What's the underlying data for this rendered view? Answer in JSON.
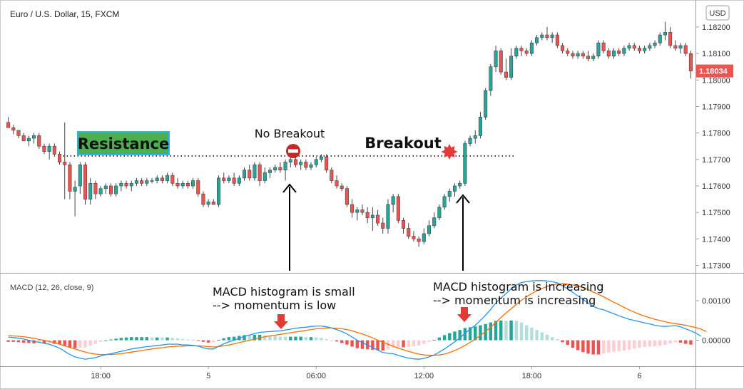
{
  "chart_data": {
    "type": "candlestick",
    "title": "Euro / U.S. Dollar, 15, FXCM",
    "currency_label": "USD",
    "price_axis": {
      "ylim": [
        1.1728,
        1.18275
      ],
      "ticks": [
        "1.18200",
        "1.18100",
        "1.18000",
        "1.17900",
        "1.17800",
        "1.17700",
        "1.17600",
        "1.17500",
        "1.17400",
        "1.17300"
      ],
      "tick_values": [
        1.182,
        1.181,
        1.18,
        1.179,
        1.178,
        1.177,
        1.176,
        1.175,
        1.174,
        1.173
      ],
      "last_price_label": "1.18034",
      "last_price": 1.18034
    },
    "time_axis": {
      "labels": [
        "18:00",
        "5",
        "06:00",
        "12:00",
        "18:00",
        "6"
      ],
      "label_bar_index": [
        18,
        39,
        60,
        81,
        102,
        123
      ]
    },
    "resistance_level": 1.17713,
    "candles": [
      [
        1.1784,
        1.1786,
        1.1782,
        1.1782
      ],
      [
        1.1782,
        1.1783,
        1.17795,
        1.1781
      ],
      [
        1.1781,
        1.1781,
        1.1778,
        1.1779
      ],
      [
        1.1779,
        1.178,
        1.1777,
        1.1777
      ],
      [
        1.1777,
        1.1779,
        1.1775,
        1.1778
      ],
      [
        1.1778,
        1.178,
        1.1776,
        1.1779
      ],
      [
        1.1779,
        1.178,
        1.1774,
        1.1775
      ],
      [
        1.1775,
        1.1776,
        1.1772,
        1.1773
      ],
      [
        1.1773,
        1.1776,
        1.177,
        1.1775
      ],
      [
        1.1775,
        1.1776,
        1.1771,
        1.1772
      ],
      [
        1.1772,
        1.1773,
        1.1768,
        1.1769
      ],
      [
        1.1769,
        1.1784,
        1.1755,
        1.1768
      ],
      [
        1.1768,
        1.1769,
        1.1755,
        1.1758
      ],
      [
        1.1758,
        1.1762,
        1.17485,
        1.17595
      ],
      [
        1.176,
        1.1769,
        1.1757,
        1.1768
      ],
      [
        1.1768,
        1.1769,
        1.1753,
        1.1755
      ],
      [
        1.1755,
        1.1763,
        1.1753,
        1.1761
      ],
      [
        1.1761,
        1.1762,
        1.1755,
        1.1757
      ],
      [
        1.1757,
        1.176,
        1.1756,
        1.1759
      ],
      [
        1.1759,
        1.1761,
        1.1757,
        1.176
      ],
      [
        1.176,
        1.1761,
        1.1756,
        1.1757
      ],
      [
        1.1757,
        1.1761,
        1.1756,
        1.176
      ],
      [
        1.176,
        1.1762,
        1.1758,
        1.1761
      ],
      [
        1.1761,
        1.1762,
        1.1759,
        1.176
      ],
      [
        1.176,
        1.1762,
        1.1758,
        1.1761
      ],
      [
        1.1761,
        1.1763,
        1.176,
        1.1762
      ],
      [
        1.1762,
        1.1763,
        1.176,
        1.1761
      ],
      [
        1.1761,
        1.1763,
        1.176,
        1.1762
      ],
      [
        1.1762,
        1.1763,
        1.1761,
        1.1762
      ],
      [
        1.1762,
        1.1764,
        1.1761,
        1.1763
      ],
      [
        1.1763,
        1.1764,
        1.1761,
        1.1762
      ],
      [
        1.1762,
        1.1765,
        1.1761,
        1.1764
      ],
      [
        1.1764,
        1.1765,
        1.176,
        1.1761
      ],
      [
        1.1761,
        1.1763,
        1.1759,
        1.176
      ],
      [
        1.176,
        1.1762,
        1.1759,
        1.1761
      ],
      [
        1.1761,
        1.1762,
        1.1759,
        1.176
      ],
      [
        1.176,
        1.1763,
        1.1759,
        1.1762
      ],
      [
        1.1762,
        1.1763,
        1.1756,
        1.1757
      ],
      [
        1.1757,
        1.1758,
        1.1752,
        1.1753
      ],
      [
        1.1753,
        1.1755,
        1.1752,
        1.1754
      ],
      [
        1.1754,
        1.1755,
        1.1753,
        1.1753
      ],
      [
        1.1753,
        1.1764,
        1.1752,
        1.1763
      ],
      [
        1.1763,
        1.1765,
        1.1761,
        1.1762
      ],
      [
        1.1762,
        1.1764,
        1.1761,
        1.1763
      ],
      [
        1.1763,
        1.1765,
        1.176,
        1.1761
      ],
      [
        1.1761,
        1.1764,
        1.176,
        1.1763
      ],
      [
        1.1763,
        1.1767,
        1.1762,
        1.1766
      ],
      [
        1.1766,
        1.1768,
        1.1762,
        1.1763
      ],
      [
        1.1763,
        1.1769,
        1.1762,
        1.1768
      ],
      [
        1.1768,
        1.1769,
        1.176,
        1.1762
      ],
      [
        1.1762,
        1.1767,
        1.1761,
        1.1765
      ],
      [
        1.1765,
        1.1767,
        1.1763,
        1.1766
      ],
      [
        1.1766,
        1.1768,
        1.1765,
        1.1767
      ],
      [
        1.1767,
        1.1769,
        1.1765,
        1.1766
      ],
      [
        1.1766,
        1.177,
        1.1762,
        1.1769
      ],
      [
        1.1769,
        1.1771,
        1.1767,
        1.177
      ],
      [
        1.177,
        1.1772,
        1.1767,
        1.1768
      ],
      [
        1.1768,
        1.177,
        1.1766,
        1.1769
      ],
      [
        1.1769,
        1.177,
        1.1766,
        1.1767
      ],
      [
        1.1767,
        1.1769,
        1.1766,
        1.1768
      ],
      [
        1.1768,
        1.1771,
        1.1767,
        1.177
      ],
      [
        1.177,
        1.1772,
        1.1769,
        1.1771
      ],
      [
        1.1771,
        1.1772,
        1.1765,
        1.1766
      ],
      [
        1.1766,
        1.1767,
        1.1761,
        1.1762
      ],
      [
        1.1762,
        1.1764,
        1.1759,
        1.176
      ],
      [
        1.176,
        1.1761,
        1.1758,
        1.1759
      ],
      [
        1.1759,
        1.176,
        1.1752,
        1.1753
      ],
      [
        1.1753,
        1.1755,
        1.1748,
        1.175
      ],
      [
        1.175,
        1.1752,
        1.1747,
        1.1751
      ],
      [
        1.1751,
        1.1753,
        1.1749,
        1.175
      ],
      [
        1.175,
        1.1752,
        1.1746,
        1.1748
      ],
      [
        1.1748,
        1.1752,
        1.1743,
        1.1749
      ],
      [
        1.1749,
        1.1751,
        1.1745,
        1.1746
      ],
      [
        1.1746,
        1.1748,
        1.1742,
        1.1744
      ],
      [
        1.1744,
        1.1755,
        1.1742,
        1.1753
      ],
      [
        1.1753,
        1.1757,
        1.175,
        1.1756
      ],
      [
        1.1756,
        1.1757,
        1.1746,
        1.1747
      ],
      [
        1.1747,
        1.1748,
        1.1742,
        1.1744
      ],
      [
        1.1744,
        1.1746,
        1.174,
        1.1741
      ],
      [
        1.1741,
        1.1743,
        1.1739,
        1.174
      ],
      [
        1.174,
        1.1741,
        1.1737,
        1.1739
      ],
      [
        1.1739,
        1.1744,
        1.1738,
        1.1742
      ],
      [
        1.1742,
        1.1747,
        1.1741,
        1.1745
      ],
      [
        1.1745,
        1.175,
        1.1744,
        1.1748
      ],
      [
        1.1748,
        1.1753,
        1.1747,
        1.1752
      ],
      [
        1.1752,
        1.1757,
        1.1751,
        1.1756
      ],
      [
        1.1756,
        1.1759,
        1.1754,
        1.1758
      ],
      [
        1.1758,
        1.1761,
        1.1756,
        1.176
      ],
      [
        1.176,
        1.1762,
        1.1759,
        1.1761
      ],
      [
        1.1761,
        1.1777,
        1.176,
        1.1776
      ],
      [
        1.1776,
        1.1779,
        1.1775,
        1.1778
      ],
      [
        1.1778,
        1.1781,
        1.1776,
        1.1779
      ],
      [
        1.1779,
        1.1788,
        1.1778,
        1.1786
      ],
      [
        1.1786,
        1.1797,
        1.1785,
        1.1796
      ],
      [
        1.1796,
        1.1806,
        1.1794,
        1.1805
      ],
      [
        1.1805,
        1.1813,
        1.1803,
        1.1811
      ],
      [
        1.1811,
        1.1812,
        1.1802,
        1.1803
      ],
      [
        1.1803,
        1.1808,
        1.18,
        1.1801
      ],
      [
        1.1801,
        1.1812,
        1.18,
        1.1809
      ],
      [
        1.1809,
        1.1813,
        1.1808,
        1.1812
      ],
      [
        1.1812,
        1.1813,
        1.1809,
        1.1811
      ],
      [
        1.1811,
        1.1812,
        1.1809,
        1.181
      ],
      [
        1.181,
        1.1815,
        1.1809,
        1.1814
      ],
      [
        1.1814,
        1.1817,
        1.1813,
        1.1816
      ],
      [
        1.1816,
        1.1818,
        1.1815,
        1.1817
      ],
      [
        1.1817,
        1.182,
        1.1815,
        1.1816
      ],
      [
        1.1816,
        1.1818,
        1.1814,
        1.1817
      ],
      [
        1.1817,
        1.1818,
        1.1812,
        1.1813
      ],
      [
        1.1813,
        1.1814,
        1.181,
        1.1811
      ],
      [
        1.1811,
        1.1812,
        1.1809,
        1.181
      ],
      [
        1.181,
        1.1811,
        1.1808,
        1.1809
      ],
      [
        1.1809,
        1.1811,
        1.1808,
        1.181
      ],
      [
        1.181,
        1.1811,
        1.1808,
        1.1809
      ],
      [
        1.1809,
        1.1811,
        1.1807,
        1.1808
      ],
      [
        1.1808,
        1.181,
        1.1807,
        1.1809
      ],
      [
        1.1809,
        1.1815,
        1.1808,
        1.1814
      ],
      [
        1.1814,
        1.1815,
        1.181,
        1.1811
      ],
      [
        1.1811,
        1.1812,
        1.1808,
        1.1809
      ],
      [
        1.1809,
        1.1812,
        1.1808,
        1.1811
      ],
      [
        1.1811,
        1.1812,
        1.1809,
        1.181
      ],
      [
        1.181,
        1.1813,
        1.1809,
        1.1812
      ],
      [
        1.1812,
        1.1814,
        1.1811,
        1.1813
      ],
      [
        1.1813,
        1.1814,
        1.1811,
        1.1812
      ],
      [
        1.1812,
        1.1813,
        1.181,
        1.1811
      ],
      [
        1.1811,
        1.1813,
        1.181,
        1.1812
      ],
      [
        1.1812,
        1.1814,
        1.1811,
        1.1813
      ],
      [
        1.1813,
        1.1815,
        1.1812,
        1.1814
      ],
      [
        1.1814,
        1.1818,
        1.1813,
        1.1817
      ],
      [
        1.1817,
        1.1822,
        1.1815,
        1.1818
      ],
      [
        1.1818,
        1.182,
        1.1812,
        1.1813
      ],
      [
        1.1813,
        1.1815,
        1.1811,
        1.1812
      ],
      [
        1.1812,
        1.1814,
        1.181,
        1.1813
      ],
      [
        1.1813,
        1.1814,
        1.1809,
        1.181
      ],
      [
        1.181,
        1.1811,
        1.18005,
        1.18034
      ]
    ],
    "macd": {
      "label": "MACD (12, 26, close, 9)",
      "ylim": [
        -0.00062,
        0.00165
      ],
      "ticks": [
        "0.00100",
        "0.00000"
      ],
      "tick_values": [
        0.001,
        0.0
      ],
      "macd_line": [
        8e-05,
        7e-05,
        5e-05,
        3e-05,
        0.0,
        -3e-05,
        -5e-05,
        -8e-05,
        -0.0001,
        -0.00015,
        -0.0002,
        -0.00028,
        -0.00036,
        -0.00042,
        -0.00045,
        -0.00048,
        -0.00046,
        -0.00044,
        -0.0004,
        -0.00036,
        -0.00034,
        -0.00031,
        -0.00028,
        -0.00025,
        -0.00022,
        -0.0002,
        -0.00018,
        -0.00016,
        -0.00015,
        -0.00013,
        -0.00012,
        -0.0001,
        -0.0001,
        -0.0001,
        -0.00012,
        -0.00012,
        -0.00013,
        -0.00015,
        -0.00019,
        -0.00022,
        -0.00022,
        -0.00015,
        -9e-05,
        -4e-05,
        0.0,
        5e-05,
        0.0001,
        0.00013,
        0.00017,
        0.0002,
        0.00021,
        0.00022,
        0.00023,
        0.00024,
        0.00026,
        0.00028,
        0.0003,
        0.00032,
        0.00033,
        0.00035,
        0.00036,
        0.00036,
        0.00034,
        0.00031,
        0.00027,
        0.00022,
        0.00016,
        8e-05,
        0.0,
        -6e-05,
        -0.00012,
        -0.00018,
        -0.00025,
        -0.00031,
        -0.00033,
        -0.00034,
        -0.00038,
        -0.00042,
        -0.00045,
        -0.00047,
        -0.00048,
        -0.00046,
        -0.00042,
        -0.00037,
        -0.0003,
        -0.00022,
        -0.00013,
        -4e-05,
        6e-05,
        0.00018,
        0.00028,
        0.00038,
        0.0005,
        0.00063,
        0.00078,
        0.00094,
        0.00107,
        0.00118,
        0.0013,
        0.0014,
        0.00146,
        0.00148,
        0.0015,
        0.00151,
        0.00151,
        0.0015,
        0.00148,
        0.00145,
        0.00138,
        0.0013,
        0.00121,
        0.00112,
        0.00103,
        0.00094,
        0.00086,
        0.0008,
        0.00077,
        0.00072,
        0.00067,
        0.00062,
        0.00057,
        0.00053,
        0.0005,
        0.00047,
        0.00044,
        0.00041,
        0.00038,
        0.00036,
        0.00035,
        0.00036,
        0.00037,
        0.00034,
        0.00029,
        0.00024,
        0.00018,
        0.0001
      ],
      "signal_line": [
        0.00012,
        0.00011,
        0.0001,
        9e-05,
        7e-05,
        5e-05,
        2e-05,
        0.0,
        -3e-05,
        -6e-05,
        -0.0001,
        -0.00014,
        -0.00018,
        -0.00022,
        -0.00026,
        -0.0003,
        -0.00033,
        -0.00035,
        -0.00036,
        -0.00036,
        -0.00036,
        -0.00035,
        -0.00034,
        -0.00032,
        -0.0003,
        -0.00028,
        -0.00026,
        -0.00024,
        -0.00022,
        -0.0002,
        -0.00019,
        -0.00017,
        -0.00016,
        -0.00015,
        -0.00015,
        -0.00014,
        -0.00014,
        -0.00014,
        -0.00015,
        -0.00016,
        -0.00017,
        -0.00016,
        -0.00014,
        -0.00012,
        -9e-05,
        -6e-05,
        -3e-05,
        0.0,
        3e-05,
        6e-05,
        9e-05,
        0.00011,
        0.00013,
        0.00015,
        0.00017,
        0.00019,
        0.00021,
        0.00023,
        0.00025,
        0.00027,
        0.00029,
        0.0003,
        0.00031,
        0.00031,
        0.0003,
        0.00029,
        0.00027,
        0.00024,
        0.0002,
        0.00016,
        0.00011,
        6e-05,
        0.0,
        -5e-05,
        -0.0001,
        -0.00015,
        -0.0002,
        -0.00024,
        -0.00028,
        -0.00032,
        -0.00035,
        -0.00037,
        -0.00038,
        -0.00038,
        -0.00037,
        -0.00035,
        -0.00031,
        -0.00026,
        -0.0002,
        -0.00013,
        -5e-05,
        3e-05,
        0.00012,
        0.00022,
        0.00033,
        0.00045,
        0.00057,
        0.00069,
        0.0008,
        0.00091,
        0.00101,
        0.0011,
        0.00118,
        0.00125,
        0.00131,
        0.00136,
        0.0014,
        0.00142,
        0.00143,
        0.00142,
        0.0014,
        0.00137,
        0.00133,
        0.00128,
        0.00122,
        0.00116,
        0.0011,
        0.00103,
        0.00096,
        0.0009,
        0.00083,
        0.00077,
        0.00071,
        0.00066,
        0.00061,
        0.00057,
        0.00053,
        0.0005,
        0.00047,
        0.00044,
        0.00042,
        0.0004,
        0.00038,
        0.00035,
        0.00032,
        0.00028,
        0.00022
      ]
    },
    "annotations": {
      "resistance_label": "Resistance",
      "no_breakout_label": "No Breakout",
      "breakout_label": "Breakout",
      "macd_small_line1": "MACD histogram is small",
      "macd_small_line2": "--> momentum is low",
      "macd_increasing_line1": "MACD histogram is increasing",
      "macd_increasing_line2": "--> momentum is increasing"
    },
    "colors": {
      "up": "#26a69a",
      "down": "#ef5350",
      "macd_line": "#2196f3",
      "signal_line": "#ff6d00",
      "resistance_fill": "#4caf50",
      "resistance_border": "#29b6f6",
      "marker_red": "#e53935",
      "no_breakout_icon": "#c62828",
      "last_price_bg": "#ef5350"
    }
  }
}
